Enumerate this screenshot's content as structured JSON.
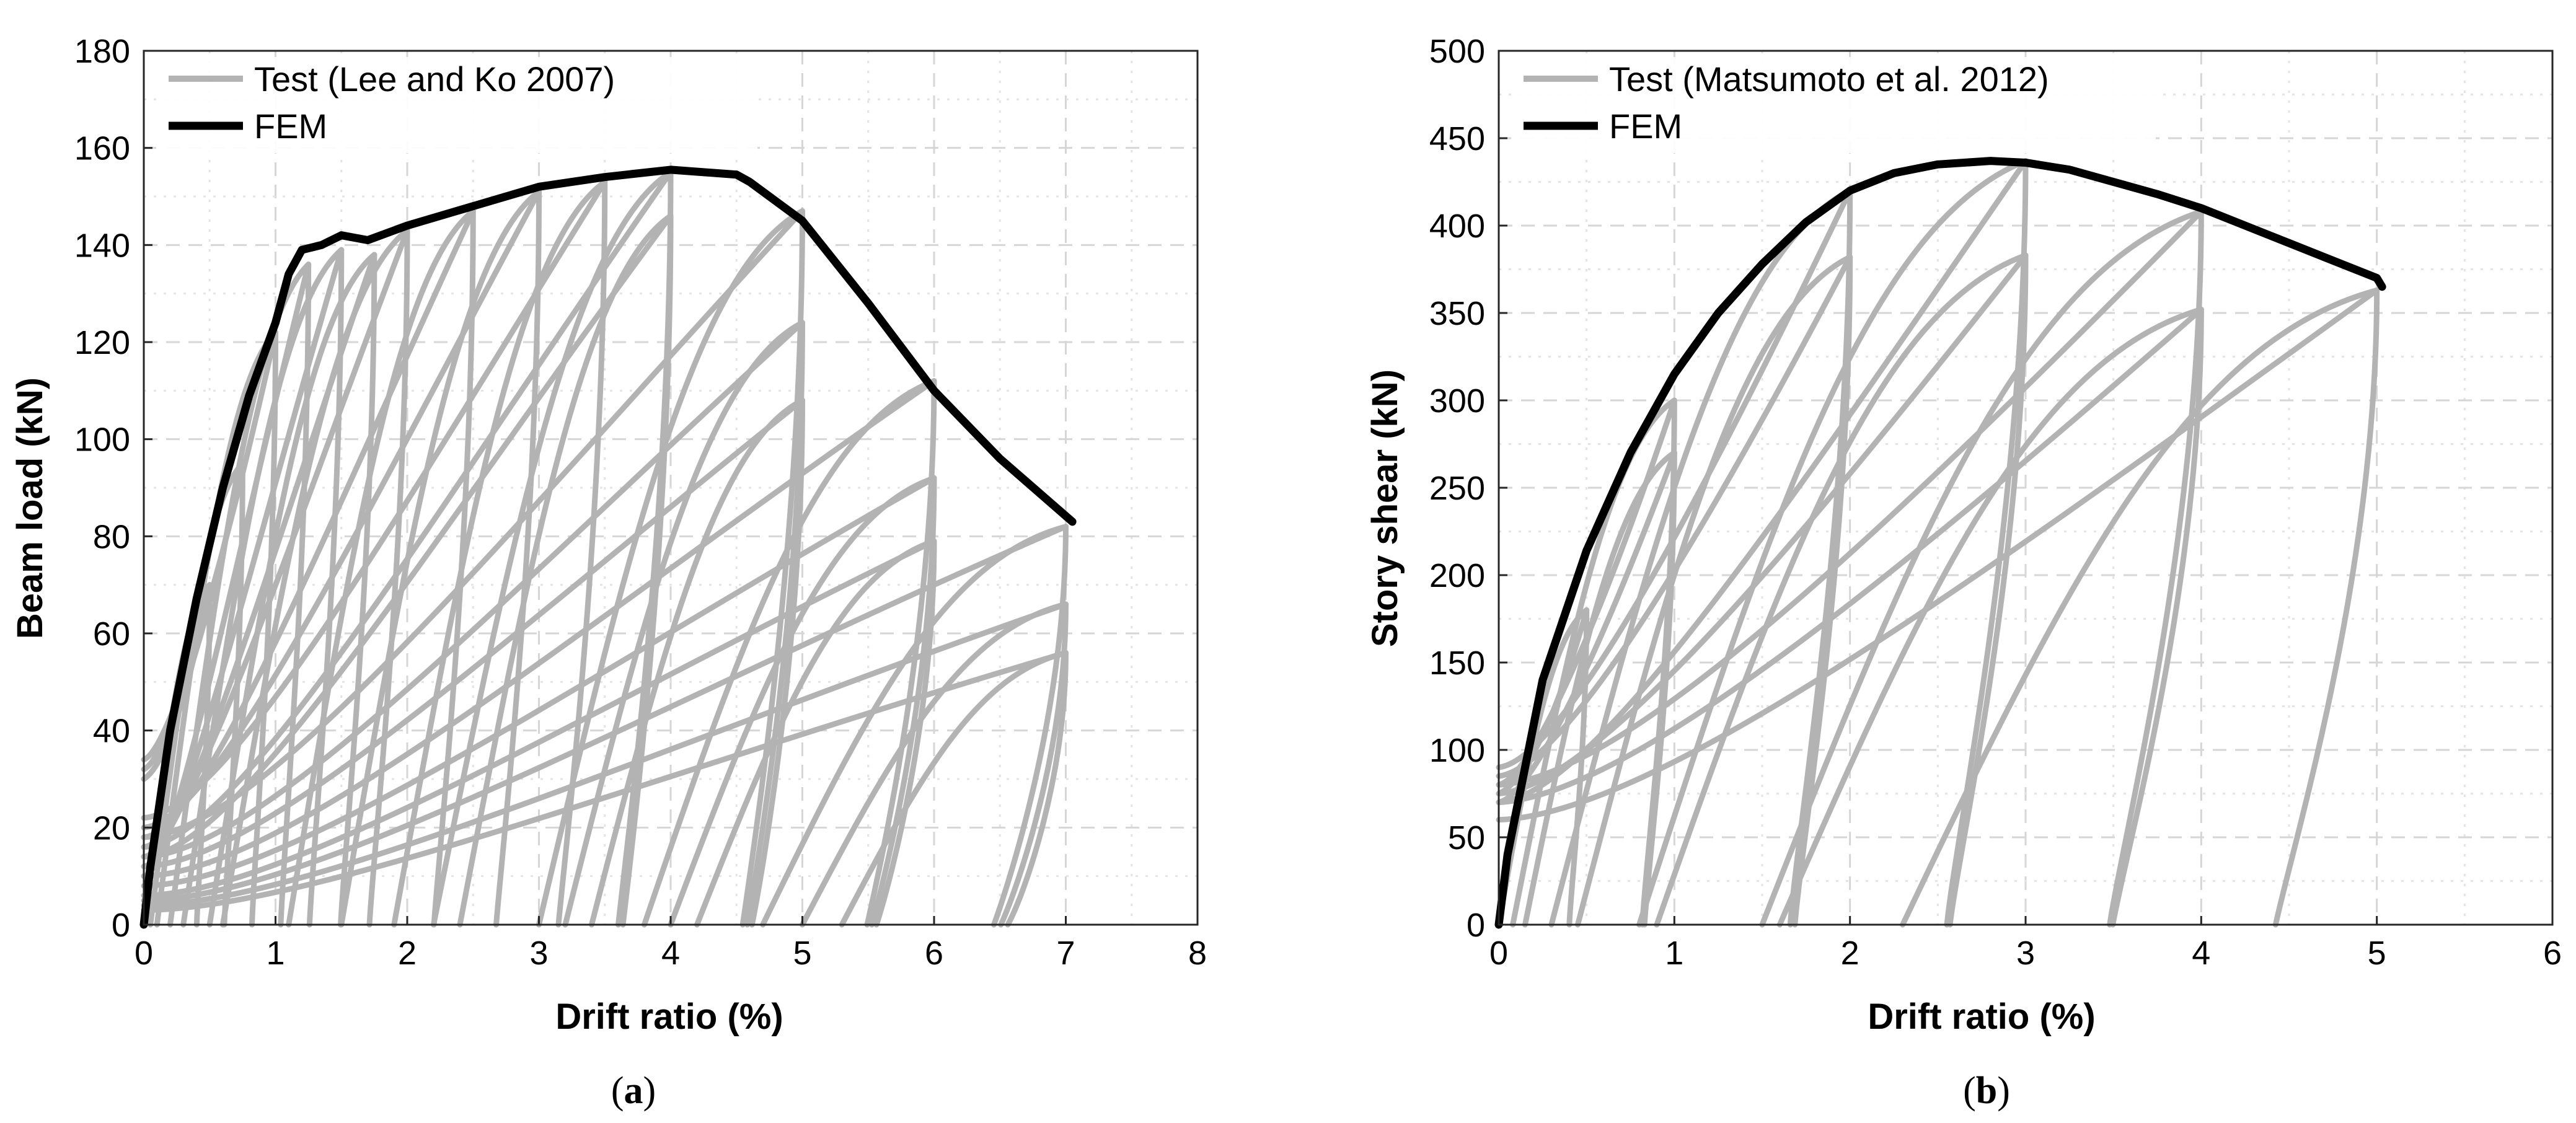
{
  "chart_data": [
    {
      "type": "line",
      "panel": "(a)",
      "caption_open": "(",
      "caption_letter": "a",
      "caption_close": ")",
      "xlabel": "Drift ratio (%)",
      "ylabel": "Beam load (kN)",
      "xlim": [
        0,
        8
      ],
      "ylim": [
        0,
        180
      ],
      "xticks": [
        0,
        1,
        2,
        3,
        4,
        5,
        6,
        7,
        8
      ],
      "yticks": [
        0,
        20,
        40,
        60,
        80,
        100,
        120,
        140,
        160,
        180
      ],
      "grid": true,
      "legend_position": "top-left",
      "colors": {
        "test": "#b3b3b3",
        "fem": "#000000"
      },
      "series": [
        {
          "name": "Test (Lee and Ko 2007)",
          "kind": "test",
          "cycles": [
            {
              "peak": [
                0.5,
                70
              ],
              "residual": 0.0,
              "pinch": 30
            },
            {
              "peak": [
                0.75,
                95
              ],
              "residual": 0.05,
              "pinch": 32
            },
            {
              "peak": [
                1.0,
                122
              ],
              "residual": 0.1,
              "pinch": 34
            },
            {
              "peak": [
                1.25,
                136
              ],
              "residual": 0.2,
              "pinch": 10
            },
            {
              "peak": [
                1.5,
                139
              ],
              "residual": 0.3,
              "pinch": 12
            },
            {
              "peak": [
                1.75,
                138
              ],
              "residual": 0.5,
              "pinch": 14
            },
            {
              "peak": [
                2.0,
                143
              ],
              "residual": 0.6,
              "pinch": 16
            },
            {
              "peak": [
                2.5,
                147
              ],
              "residual": 1.1,
              "pinch": 18
            },
            {
              "peak": [
                3.0,
                151
              ],
              "residual": 1.5,
              "pinch": 20
            },
            {
              "peak": [
                3.5,
                153
              ],
              "residual": 1.9,
              "pinch": 22
            },
            {
              "peak": [
                4.0,
                155
              ],
              "residual": 2.2,
              "pinch": 16
            },
            {
              "peak": [
                4.0,
                146
              ],
              "residual": 2.4,
              "pinch": 14
            },
            {
              "peak": [
                5.0,
                147
              ],
              "residual": 3.0,
              "pinch": 18
            },
            {
              "peak": [
                5.0,
                124
              ],
              "residual": 3.2,
              "pinch": 14
            },
            {
              "peak": [
                5.0,
                108
              ],
              "residual": 3.4,
              "pinch": 12
            },
            {
              "peak": [
                6.0,
                112
              ],
              "residual": 3.8,
              "pinch": 10
            },
            {
              "peak": [
                6.0,
                92
              ],
              "residual": 4.0,
              "pinch": 8
            },
            {
              "peak": [
                6.0,
                79
              ],
              "residual": 4.2,
              "pinch": 6
            },
            {
              "peak": [
                7.0,
                82
              ],
              "residual": 4.7,
              "pinch": 5
            },
            {
              "peak": [
                7.0,
                66
              ],
              "residual": 5.0,
              "pinch": 4
            },
            {
              "peak": [
                7.0,
                56
              ],
              "residual": 5.3,
              "pinch": 3
            }
          ]
        },
        {
          "name": "FEM",
          "kind": "fem",
          "x": [
            0,
            0.05,
            0.2,
            0.4,
            0.6,
            0.8,
            1.0,
            1.1,
            1.2,
            1.35,
            1.5,
            1.7,
            2.0,
            2.5,
            3.0,
            3.5,
            4.0,
            4.5,
            4.6,
            5.0,
            5.5,
            6.0,
            6.5,
            7.05
          ],
          "y": [
            0,
            12,
            40,
            67,
            90,
            109,
            124,
            134,
            139,
            140,
            142,
            141,
            144,
            148,
            152,
            154,
            155.5,
            154.5,
            153,
            145,
            128,
            110,
            96,
            83
          ]
        }
      ]
    },
    {
      "type": "line",
      "panel": "(b)",
      "caption_open": "(",
      "caption_letter": "b",
      "caption_close": ")",
      "xlabel": "Drift ratio (%)",
      "ylabel": "Story shear (kN)",
      "xlim": [
        0,
        6
      ],
      "ylim": [
        0,
        500
      ],
      "xticks": [
        0,
        1,
        2,
        3,
        4,
        5,
        6
      ],
      "yticks": [
        0,
        50,
        100,
        150,
        200,
        250,
        300,
        350,
        400,
        450,
        500
      ],
      "grid": true,
      "legend_position": "top-left",
      "colors": {
        "test": "#b3b3b3",
        "fem": "#000000"
      },
      "series": [
        {
          "name": "Test (Matsumoto et al. 2012)",
          "kind": "test",
          "cycles": [
            {
              "peak": [
                0.5,
                180
              ],
              "residual": 0.0,
              "pinch": 75
            },
            {
              "peak": [
                1.0,
                300
              ],
              "residual": 0.08,
              "pinch": 80
            },
            {
              "peak": [
                1.0,
                270
              ],
              "residual": 0.15,
              "pinch": 70
            },
            {
              "peak": [
                2.0,
                420
              ],
              "residual": 0.3,
              "pinch": 90
            },
            {
              "peak": [
                2.0,
                382
              ],
              "residual": 0.45,
              "pinch": 85
            },
            {
              "peak": [
                3.0,
                437
              ],
              "residual": 0.8,
              "pinch": 70
            },
            {
              "peak": [
                3.0,
                383
              ],
              "residual": 0.9,
              "pinch": 75
            },
            {
              "peak": [
                4.0,
                408
              ],
              "residual": 1.5,
              "pinch": 80
            },
            {
              "peak": [
                4.0,
                352
              ],
              "residual": 1.6,
              "pinch": 70
            },
            {
              "peak": [
                5.0,
                363
              ],
              "residual": 2.3,
              "pinch": 60
            }
          ]
        },
        {
          "name": "FEM",
          "kind": "fem",
          "x": [
            0,
            0.05,
            0.25,
            0.5,
            0.75,
            1.0,
            1.25,
            1.5,
            1.75,
            2.0,
            2.25,
            2.5,
            2.8,
            3.0,
            3.25,
            3.5,
            3.75,
            4.0,
            4.25,
            4.5,
            4.75,
            5.0,
            5.03
          ],
          "y": [
            0,
            40,
            140,
            214,
            270,
            315,
            350,
            378,
            402,
            420,
            430,
            435,
            437,
            436,
            432,
            425,
            418,
            410,
            400,
            390,
            380,
            370,
            365
          ]
        }
      ]
    }
  ]
}
